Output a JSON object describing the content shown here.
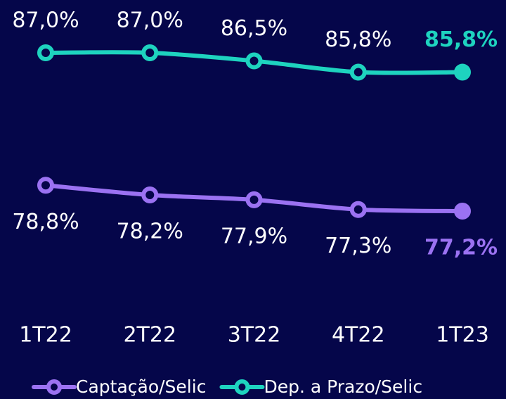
{
  "chart_data": {
    "type": "line",
    "categories": [
      "1T22",
      "2T22",
      "3T22",
      "4T22",
      "1T23"
    ],
    "series": [
      {
        "name": "Captação/Selic",
        "color": "#9b72f2",
        "values": [
          78.8,
          78.2,
          77.9,
          77.3,
          77.2
        ],
        "value_labels": [
          "78,8%",
          "78,2%",
          "77,9%",
          "77,3%",
          "77,2%"
        ]
      },
      {
        "name": "Dep. a Prazo/Selic",
        "color": "#1ed3bf",
        "values": [
          87.0,
          87.0,
          86.5,
          85.8,
          85.8
        ],
        "value_labels": [
          "87,0%",
          "87,0%",
          "86,5%",
          "85,8%",
          "85,8%"
        ]
      }
    ],
    "legend": "bottom"
  }
}
